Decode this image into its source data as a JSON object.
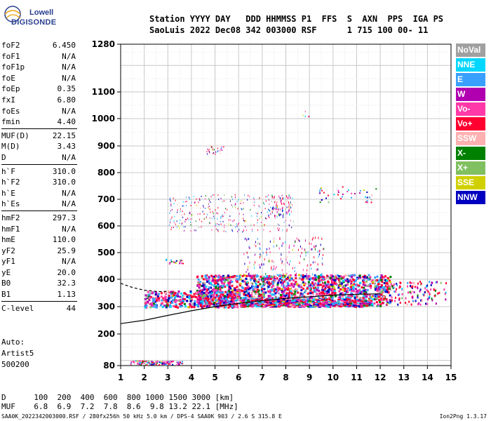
{
  "logo": {
    "line1": "Lowell",
    "line2": "DIGISONDE"
  },
  "header": {
    "row1": "Station YYYY DAY   DDD HHMMSS P1  FFS  S  AXN  PPS  IGA PS",
    "row2": "SaoLuis 2022 Dec08 342 003000 RSF      1 715 100 00- 11"
  },
  "params": {
    "group1": [
      {
        "k": "foF2",
        "v": "6.450"
      },
      {
        "k": "foF1",
        "v": "N/A"
      },
      {
        "k": "foF1p",
        "v": "N/A"
      },
      {
        "k": "foE",
        "v": "N/A"
      },
      {
        "k": "foEp",
        "v": "0.35"
      },
      {
        "k": "fxI",
        "v": "6.80"
      },
      {
        "k": "foEs",
        "v": "N/A"
      },
      {
        "k": "fmin",
        "v": "4.40"
      }
    ],
    "group2": [
      {
        "k": "MUF(D)",
        "v": "22.15"
      },
      {
        "k": "M(D)",
        "v": "3.43"
      },
      {
        "k": "D",
        "v": "N/A"
      }
    ],
    "group3": [
      {
        "k": "h`F",
        "v": "310.0"
      },
      {
        "k": "h`F2",
        "v": "310.0"
      },
      {
        "k": "h`E",
        "v": "N/A"
      },
      {
        "k": "h`Es",
        "v": "N/A"
      }
    ],
    "group4": [
      {
        "k": "hmF2",
        "v": "297.3"
      },
      {
        "k": "hmF1",
        "v": "N/A"
      },
      {
        "k": "hmE",
        "v": "110.0"
      },
      {
        "k": "yF2",
        "v": "25.9"
      },
      {
        "k": "yF1",
        "v": "N/A"
      },
      {
        "k": "yE",
        "v": "20.0"
      },
      {
        "k": "B0",
        "v": "32.3"
      },
      {
        "k": "B1",
        "v": "1.13"
      }
    ],
    "group5": [
      {
        "k": "C-level",
        "v": "44"
      }
    ]
  },
  "auto": {
    "line1": "Auto:",
    "line2": "Artist5",
    "line3": "500200"
  },
  "legend": [
    {
      "label": "NoVal",
      "color": "#a0a0a0"
    },
    {
      "label": "NNE",
      "color": "#00d7ff"
    },
    {
      "label": "E",
      "color": "#3aa0ff"
    },
    {
      "label": "W",
      "color": "#b000b0"
    },
    {
      "label": "Vo-",
      "color": "#ff3aa8"
    },
    {
      "label": "Vo+",
      "color": "#ff0030"
    },
    {
      "label": "SSW",
      "color": "#ffb0b0"
    },
    {
      "label": "X-",
      "color": "#008000"
    },
    {
      "label": "X+",
      "color": "#80c060"
    },
    {
      "label": "SSE",
      "color": "#d0d000"
    },
    {
      "label": "NNW",
      "color": "#0000c0"
    }
  ],
  "footer": {
    "row1": "D      100  200  400  600  800 1000 1500 3000 [km]",
    "row2": "MUF    6.8  6.9  7.2  7.8  8.6  9.8 13.2 22.1 [MHz]",
    "row3": "SAA0K_2022342003000.RSF / 280fx256h 50 kHz 5.0 km / DPS-4 SAA0K 903 / 2.6 S 315.8 E",
    "version": "Ion2Png 1.3.17"
  },
  "chart_data": {
    "type": "scatter",
    "xlim": [
      1,
      15
    ],
    "ylim": [
      80,
      1280
    ],
    "xticks": [
      1,
      2,
      3,
      4,
      5,
      6,
      7,
      8,
      9,
      10,
      11,
      12,
      13,
      14,
      15
    ],
    "yticks": [
      80,
      200,
      300,
      400,
      500,
      600,
      700,
      800,
      900,
      1000,
      1100,
      1280
    ],
    "ytick_labels": [
      "80",
      "200",
      "300",
      "400",
      "500",
      "600",
      "700",
      "800",
      "900",
      "1000",
      "1100",
      "1280"
    ],
    "yscale": "nonlinear",
    "grid": true,
    "clusters": [
      {
        "name": "F-trace",
        "x": [
          2.0,
          12.4
        ],
        "y": [
          300,
          420
        ]
      },
      {
        "name": "second-hop",
        "x": [
          3.0,
          8.3
        ],
        "y": [
          580,
          720
        ]
      },
      {
        "name": "spread",
        "x": [
          6.2,
          9.6
        ],
        "y": [
          330,
          560
        ]
      },
      {
        "name": "low-echo",
        "x": [
          1.4,
          3.6
        ],
        "y": [
          85,
          100
        ]
      },
      {
        "name": "high",
        "x": [
          4.6,
          5.6
        ],
        "y": [
          870,
          900
        ]
      }
    ],
    "profile_curve": [
      [
        1,
        238
      ],
      [
        2,
        250
      ],
      [
        3,
        268
      ],
      [
        4,
        285
      ],
      [
        5,
        300
      ],
      [
        6,
        312
      ],
      [
        7,
        322
      ],
      [
        8,
        330
      ],
      [
        9,
        336
      ],
      [
        10,
        342
      ],
      [
        11,
        345
      ],
      [
        12,
        347
      ]
    ],
    "dashed_curve": [
      [
        1,
        385
      ],
      [
        1.5,
        370
      ],
      [
        2,
        360
      ],
      [
        2.6,
        355
      ],
      [
        3,
        356
      ]
    ]
  }
}
